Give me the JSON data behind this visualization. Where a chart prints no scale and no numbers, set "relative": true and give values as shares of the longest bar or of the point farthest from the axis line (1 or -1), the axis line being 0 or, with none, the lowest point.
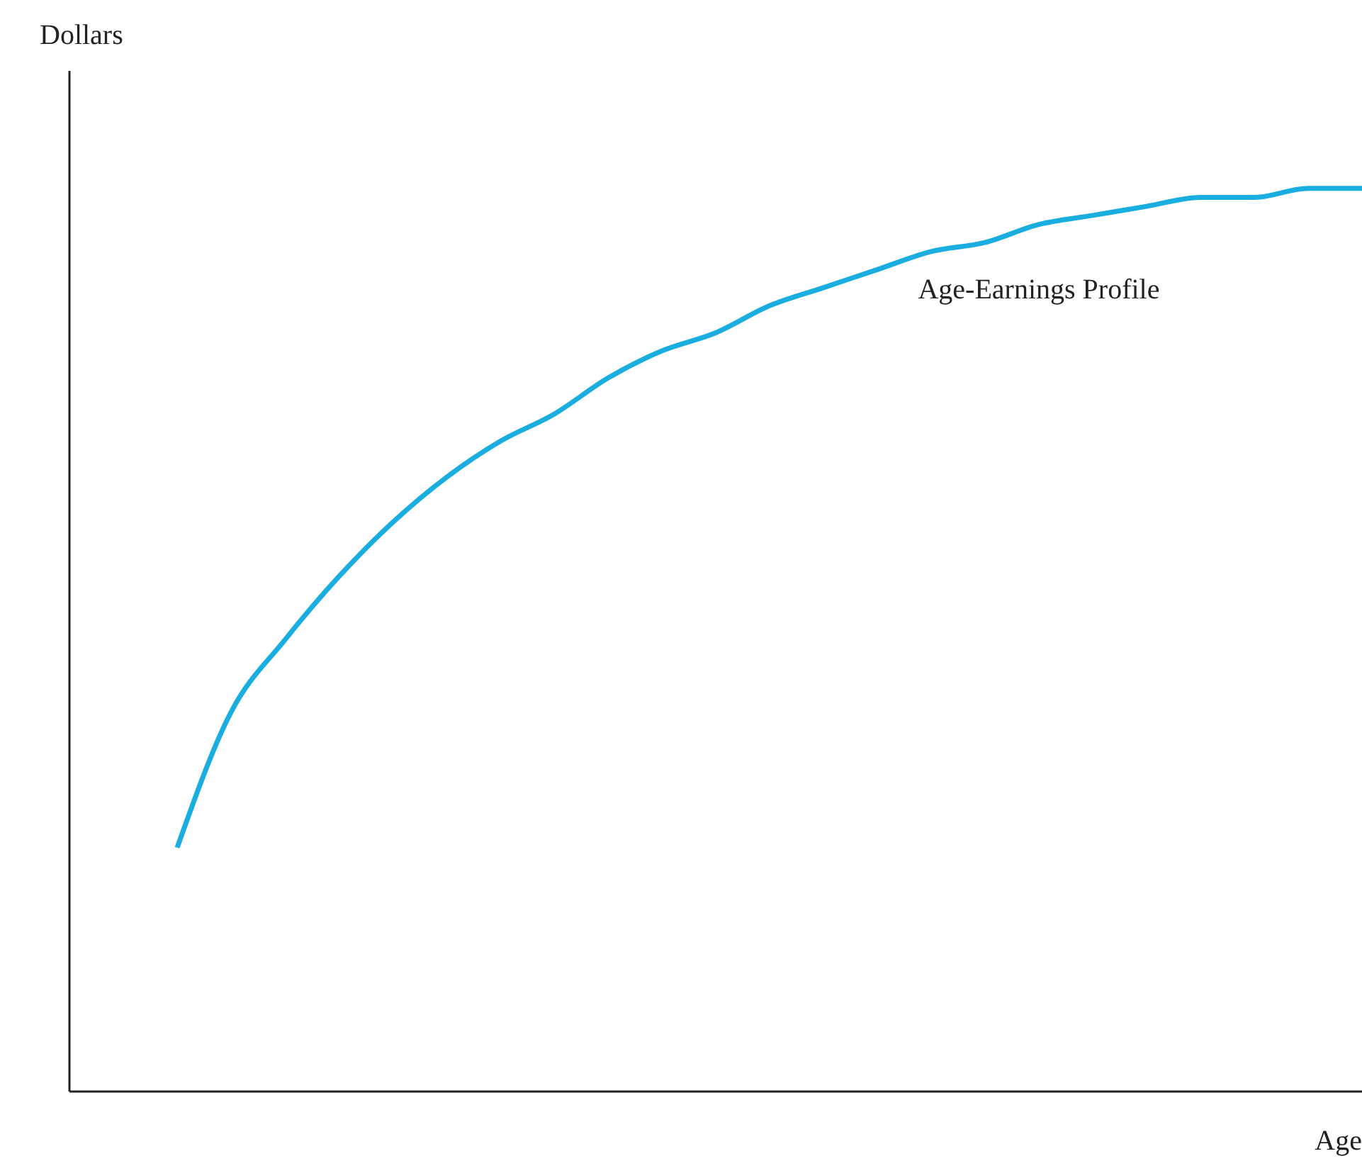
{
  "chart_data": {
    "type": "line",
    "relative": true,
    "xlabel": "Age",
    "ylabel": "Dollars",
    "categories": [
      null,
      null,
      null,
      null,
      null,
      null,
      null,
      null,
      null,
      null,
      null,
      null,
      null,
      null,
      null,
      null,
      null,
      null,
      null,
      null,
      null,
      null,
      null,
      null,
      null
    ],
    "series": [
      {
        "name": "Age-Earnings Profile",
        "color": "#1aaee0",
        "values": [
          null,
          null,
          0.27,
          0.42,
          0.5,
          0.57,
          0.63,
          0.68,
          0.72,
          0.75,
          0.79,
          0.82,
          0.84,
          0.87,
          0.89,
          0.91,
          0.93,
          0.94,
          0.96,
          0.97,
          0.98,
          0.99,
          0.99,
          1,
          1
        ]
      }
    ],
    "grid": false,
    "legend": false,
    "marker": "none",
    "line_style": "solid"
  }
}
